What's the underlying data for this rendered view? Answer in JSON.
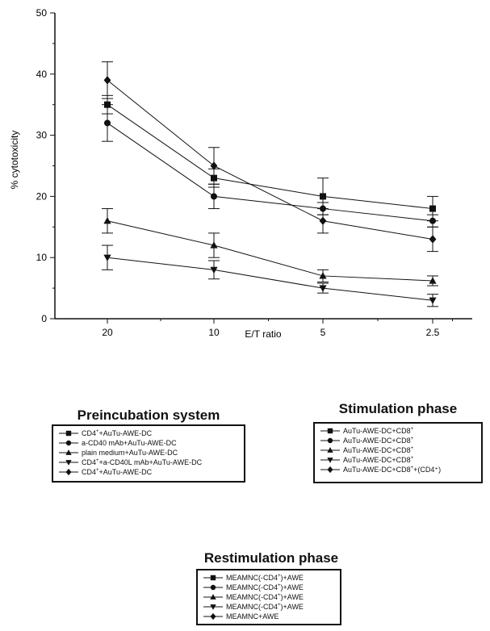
{
  "chart_data": {
    "type": "line",
    "ylabel": "% cytotoxicity",
    "xlabel": "E/T ratio",
    "categories": [
      "20",
      "10",
      "5",
      "2.5"
    ],
    "ylim": [
      0,
      50
    ],
    "yticks": [
      0,
      10,
      20,
      30,
      40,
      50
    ],
    "grid": false,
    "series": [
      {
        "marker": "square",
        "values": [
          35,
          23,
          20,
          18
        ],
        "errors": [
          1.5,
          1.5,
          3,
          2
        ]
      },
      {
        "marker": "circle",
        "values": [
          32,
          20,
          18,
          16
        ],
        "errors": [
          3,
          2,
          1,
          1
        ]
      },
      {
        "marker": "triangle-up",
        "values": [
          16,
          12,
          7,
          6.2
        ],
        "errors": [
          2,
          2,
          1,
          0.8
        ]
      },
      {
        "marker": "triangle-down",
        "values": [
          10,
          8,
          5,
          3
        ],
        "errors": [
          2,
          1.5,
          0.8,
          1
        ]
      },
      {
        "marker": "diamond",
        "values": [
          39,
          25,
          16,
          13
        ],
        "errors": [
          3,
          3,
          2,
          2
        ]
      }
    ]
  },
  "legends": {
    "preincubation": {
      "title": "Preincubation system",
      "items": [
        {
          "marker": "square",
          "pre": "CD4",
          "sup": "+",
          "post": "+AuTu-AWE-DC"
        },
        {
          "marker": "circle",
          "pre": "a-CD40 mAb+AuTu-AWE-DC",
          "sup": "",
          "post": ""
        },
        {
          "marker": "triangle-up",
          "pre": "plain medium+AuTu-AWE-DC",
          "sup": "",
          "post": ""
        },
        {
          "marker": "triangle-down",
          "pre": "CD4",
          "sup": "+",
          "post": "+a-CD40L mAb+AuTu-AWE-DC"
        },
        {
          "marker": "diamond",
          "pre": "CD4",
          "sup": "+",
          "post": "+AuTu-AWE-DC"
        }
      ]
    },
    "stimulation": {
      "title": "Stimulation phase",
      "items": [
        {
          "marker": "square",
          "pre": "AuTu-AWE-DC+CD8",
          "sup": "+",
          "post": ""
        },
        {
          "marker": "circle",
          "pre": "AuTu-AWE-DC+CD8",
          "sup": "+",
          "post": ""
        },
        {
          "marker": "triangle-up",
          "pre": "AuTu-AWE-DC+CD8",
          "sup": "+",
          "post": ""
        },
        {
          "marker": "triangle-down",
          "pre": "AuTu-AWE-DC+CD8",
          "sup": "+",
          "post": ""
        },
        {
          "marker": "diamond",
          "pre": "AuTu-AWE-DC+CD8",
          "sup": "+",
          "post": "+(CD4⁺)"
        }
      ]
    },
    "restimulation": {
      "title": "Restimulation phase",
      "items": [
        {
          "marker": "square",
          "pre": "MEAMNC(-CD4",
          "sup": "+",
          "post": ")+AWE"
        },
        {
          "marker": "circle",
          "pre": "MEAMNC(-CD4",
          "sup": "+",
          "post": ")+AWE"
        },
        {
          "marker": "triangle-up",
          "pre": "MEAMNC(-CD4",
          "sup": "+",
          "post": ")+AWE"
        },
        {
          "marker": "triangle-down",
          "pre": "MEAMNC(-CD4",
          "sup": "+",
          "post": ")+AWE"
        },
        {
          "marker": "diamond",
          "pre": "MEAMNC+AWE",
          "sup": "",
          "post": ""
        }
      ]
    }
  }
}
